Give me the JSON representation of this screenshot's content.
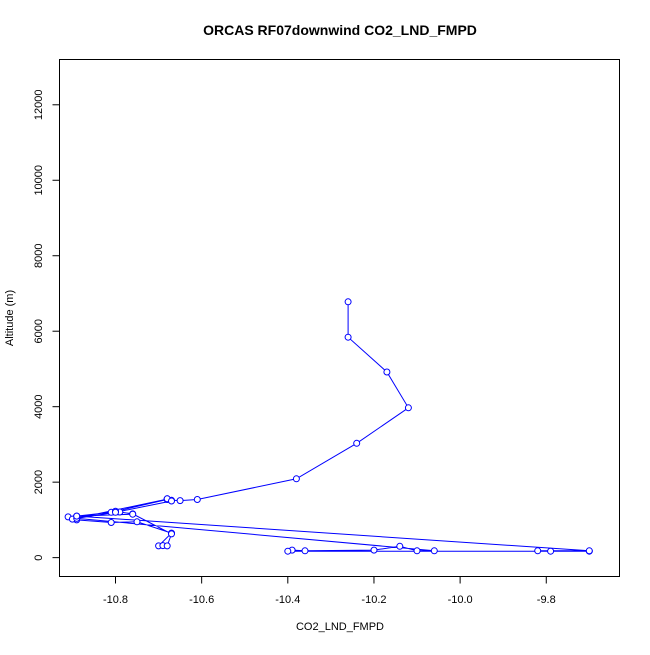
{
  "colors": {
    "series": "#0000ff",
    "axis": "#000000",
    "background": "#ffffff"
  },
  "chart_data": {
    "type": "line",
    "title": "ORCAS RF07downwind CO2_LND_FMPD",
    "xlabel": "CO2_LND_FMPD",
    "ylabel": "Altitude (m)",
    "xlim": [
      -10.93,
      -9.63
    ],
    "ylim": [
      -500,
      13200
    ],
    "x_ticks": [
      -10.8,
      -10.6,
      -10.4,
      -10.2,
      -10.0,
      -9.8
    ],
    "x_tick_labels": [
      "-10.8",
      "-10.6",
      "-10.4",
      "-10.2",
      "-10.0",
      "-9.8"
    ],
    "y_ticks": [
      0,
      2000,
      4000,
      6000,
      8000,
      10000,
      12000
    ],
    "y_tick_labels": [
      "0",
      "2000",
      "4000",
      "6000",
      "8000",
      "10000",
      "12000"
    ],
    "grid": false,
    "markers": "open-circle",
    "series": [
      {
        "x": [
          -10.26,
          -10.26,
          -10.17,
          -10.12,
          -10.24,
          -10.38,
          -10.61,
          -10.65,
          -10.67,
          -10.68,
          -10.68,
          -10.81,
          -10.89,
          -10.91,
          -10.89,
          -10.81,
          -10.75,
          -10.67,
          -10.7,
          -10.69,
          -10.68,
          -10.67,
          -10.76,
          -10.79,
          -10.8,
          -10.89,
          -10.9,
          -10.68,
          -10.68,
          -10.67,
          -10.8,
          -10.89,
          -10.06,
          -10.1,
          -10.14,
          -10.2,
          -10.36,
          -10.39,
          -10.4,
          -9.7,
          -9.79,
          -9.82,
          -9.7,
          -10.89,
          -10.76
        ],
        "y": [
          6780,
          5840,
          4920,
          3970,
          3030,
          2090,
          1540,
          1510,
          1520,
          1560,
          1540,
          1200,
          1100,
          1080,
          1000,
          930,
          950,
          650,
          310,
          320,
          310,
          630,
          1160,
          1210,
          1230,
          1080,
          1020,
          1550,
          1560,
          1500,
          1200,
          1040,
          180,
          180,
          300,
          200,
          180,
          200,
          170,
          170,
          170,
          180,
          180,
          1100,
          1150
        ]
      }
    ]
  }
}
